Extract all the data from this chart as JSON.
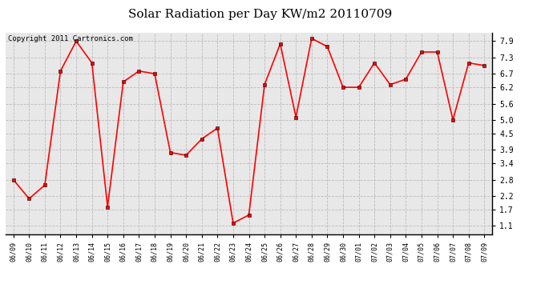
{
  "title": "Solar Radiation per Day KW/m2 20110709",
  "copyright": "Copyright 2011 Cartronics.com",
  "dates": [
    "06/09",
    "06/10",
    "06/11",
    "06/12",
    "06/13",
    "06/14",
    "06/15",
    "06/16",
    "06/17",
    "06/18",
    "06/19",
    "06/20",
    "06/21",
    "06/22",
    "06/23",
    "06/24",
    "06/25",
    "06/26",
    "06/27",
    "06/28",
    "06/29",
    "06/30",
    "07/01",
    "07/02",
    "07/03",
    "07/04",
    "07/05",
    "07/06",
    "07/07",
    "07/08",
    "07/09"
  ],
  "values": [
    2.8,
    2.1,
    2.6,
    6.8,
    7.9,
    7.1,
    1.8,
    6.4,
    6.8,
    6.7,
    3.8,
    3.7,
    4.3,
    4.7,
    1.2,
    1.5,
    6.3,
    7.8,
    5.1,
    8.0,
    7.7,
    6.2,
    6.2,
    7.1,
    6.3,
    6.5,
    7.5,
    7.5,
    5.0,
    7.1,
    7.0
  ],
  "yticks": [
    1.1,
    1.7,
    2.2,
    2.8,
    3.4,
    3.9,
    4.5,
    5.0,
    5.6,
    6.2,
    6.7,
    7.3,
    7.9
  ],
  "ymin": 0.8,
  "ymax": 8.2,
  "line_color": "red",
  "marker": "s",
  "marker_size": 2.5,
  "bg_color": "#e8e8e8",
  "grid_color": "#bbbbbb",
  "title_fontsize": 11,
  "copyright_fontsize": 6.5,
  "xtick_fontsize": 6,
  "ytick_fontsize": 7
}
